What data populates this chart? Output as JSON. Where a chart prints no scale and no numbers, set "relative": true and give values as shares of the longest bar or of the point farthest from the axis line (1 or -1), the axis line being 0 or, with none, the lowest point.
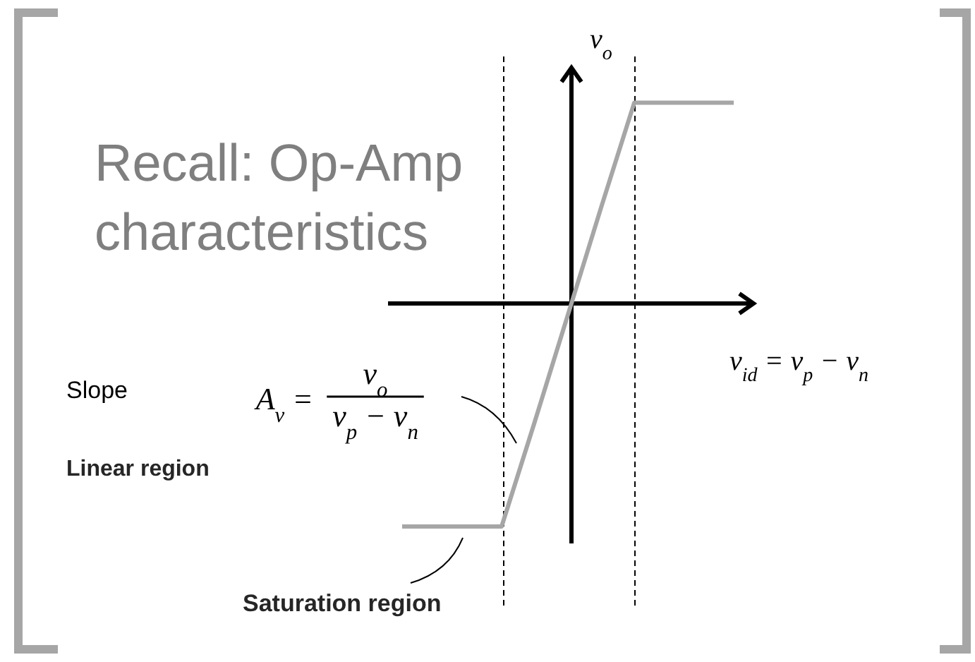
{
  "chart_data": {
    "type": "line",
    "title": "Recall: Op-Amp characteristics",
    "xlabel": "v$_{id}$ = v$_{p}$ − v$_{n}$",
    "ylabel": "v$_{o}$",
    "relative": true,
    "categories": [
      null,
      null,
      null,
      null,
      null,
      null,
      null,
      null,
      null,
      null,
      null
    ],
    "series": [
      {
        "color": "#a6a6a6",
        "values": [
          -1,
          -1,
          -1,
          -1,
          -0.53,
          -0.05,
          0.43,
          0.9,
          0.9,
          0.9,
          0.9
        ]
      }
    ],
    "annotations": [
      "Slope",
      "A$_{v}$ =",
      "v$_{o}$",
      "v$_{p}$ − v$_{n}$",
      "Linear region",
      "Saturation region"
    ]
  }
}
